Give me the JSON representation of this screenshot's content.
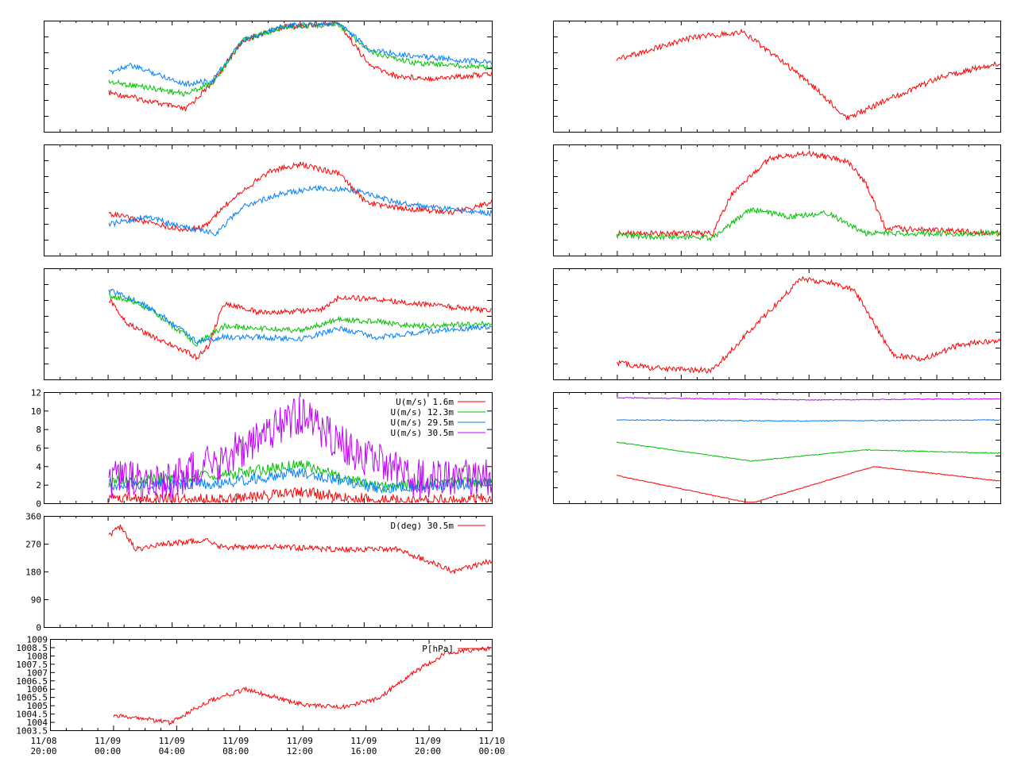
{
  "chart_data": [
    {
      "id": "p1",
      "type": "line",
      "series": [
        {
          "color": "#ff0000",
          "points": [
            [
              0,
              0.65
            ],
            [
              0.05,
              0.68
            ],
            [
              0.1,
              0.72
            ],
            [
              0.2,
              0.8
            ],
            [
              0.27,
              0.56
            ],
            [
              0.35,
              0.18
            ],
            [
              0.45,
              0.06
            ],
            [
              0.6,
              0.02
            ],
            [
              0.68,
              0.4
            ],
            [
              0.75,
              0.5
            ],
            [
              0.85,
              0.52
            ],
            [
              1,
              0.48
            ]
          ]
        },
        {
          "color": "#00c000",
          "points": [
            [
              0,
              0.55
            ],
            [
              0.1,
              0.6
            ],
            [
              0.2,
              0.66
            ],
            [
              0.27,
              0.56
            ],
            [
              0.35,
              0.18
            ],
            [
              0.45,
              0.06
            ],
            [
              0.6,
              0.03
            ],
            [
              0.68,
              0.28
            ],
            [
              0.8,
              0.38
            ],
            [
              1,
              0.42
            ]
          ]
        },
        {
          "color": "#0080ff",
          "points": [
            [
              0,
              0.47
            ],
            [
              0.05,
              0.4
            ],
            [
              0.1,
              0.45
            ],
            [
              0.2,
              0.57
            ],
            [
              0.27,
              0.54
            ],
            [
              0.35,
              0.18
            ],
            [
              0.45,
              0.05
            ],
            [
              0.6,
              0.02
            ],
            [
              0.68,
              0.26
            ],
            [
              0.8,
              0.32
            ],
            [
              1,
              0.38
            ]
          ]
        }
      ]
    },
    {
      "id": "p2",
      "type": "line",
      "series": [
        {
          "color": "#ff0000",
          "points": [
            [
              0,
              0.62
            ],
            [
              0.1,
              0.7
            ],
            [
              0.2,
              0.77
            ],
            [
              0.25,
              0.74
            ],
            [
              0.33,
              0.46
            ],
            [
              0.42,
              0.24
            ],
            [
              0.5,
              0.18
            ],
            [
              0.6,
              0.26
            ],
            [
              0.67,
              0.52
            ],
            [
              0.75,
              0.57
            ],
            [
              0.9,
              0.61
            ],
            [
              1,
              0.52
            ]
          ]
        },
        {
          "color": "#0080ff",
          "points": [
            [
              0,
              0.72
            ],
            [
              0.1,
              0.65
            ],
            [
              0.2,
              0.75
            ],
            [
              0.28,
              0.8
            ],
            [
              0.35,
              0.56
            ],
            [
              0.45,
              0.44
            ],
            [
              0.55,
              0.39
            ],
            [
              0.65,
              0.42
            ],
            [
              0.75,
              0.52
            ],
            [
              0.85,
              0.57
            ],
            [
              1,
              0.62
            ]
          ]
        }
      ]
    },
    {
      "id": "p3",
      "type": "line",
      "series": [
        {
          "color": "#ff0000",
          "points": [
            [
              0,
              0.28
            ],
            [
              0.05,
              0.5
            ],
            [
              0.12,
              0.62
            ],
            [
              0.23,
              0.8
            ],
            [
              0.26,
              0.7
            ],
            [
              0.3,
              0.32
            ],
            [
              0.4,
              0.4
            ],
            [
              0.55,
              0.38
            ],
            [
              0.6,
              0.26
            ],
            [
              0.7,
              0.28
            ],
            [
              0.8,
              0.32
            ],
            [
              1,
              0.38
            ]
          ]
        },
        {
          "color": "#00c000",
          "points": [
            [
              0,
              0.25
            ],
            [
              0.05,
              0.28
            ],
            [
              0.12,
              0.4
            ],
            [
              0.23,
              0.68
            ],
            [
              0.3,
              0.52
            ],
            [
              0.4,
              0.54
            ],
            [
              0.5,
              0.56
            ],
            [
              0.6,
              0.46
            ],
            [
              0.7,
              0.48
            ],
            [
              0.8,
              0.52
            ],
            [
              1,
              0.5
            ]
          ]
        },
        {
          "color": "#0080ff",
          "points": [
            [
              0,
              0.2
            ],
            [
              0.05,
              0.26
            ],
            [
              0.12,
              0.38
            ],
            [
              0.23,
              0.66
            ],
            [
              0.3,
              0.62
            ],
            [
              0.4,
              0.62
            ],
            [
              0.5,
              0.64
            ],
            [
              0.6,
              0.54
            ],
            [
              0.7,
              0.62
            ],
            [
              0.8,
              0.58
            ],
            [
              1,
              0.52
            ]
          ]
        }
      ]
    },
    {
      "id": "p4",
      "type": "line",
      "ylim": [
        0,
        12
      ],
      "yticks": [
        "12",
        "10",
        "8",
        "6",
        "4",
        "2",
        "0"
      ],
      "legend": [
        "U(m/s)  1.6m",
        "U(m/s) 12.3m",
        "U(m/s) 29.5m",
        "U(m/s) 30.5m"
      ],
      "series": [
        {
          "name": "U(m/s)  1.6m",
          "color": "#ff0000",
          "points": [
            [
              0,
              0.95
            ],
            [
              0.3,
              0.97
            ],
            [
              0.5,
              0.9
            ],
            [
              0.7,
              0.97
            ],
            [
              1,
              0.96
            ]
          ]
        },
        {
          "name": "U(m/s) 12.3m",
          "color": "#00c000",
          "points": [
            [
              0,
              0.8
            ],
            [
              0.3,
              0.75
            ],
            [
              0.5,
              0.65
            ],
            [
              0.7,
              0.85
            ],
            [
              1,
              0.8
            ]
          ]
        },
        {
          "name": "U(m/s) 29.5m",
          "color": "#0080ff",
          "points": [
            [
              0,
              0.83
            ],
            [
              0.3,
              0.82
            ],
            [
              0.5,
              0.72
            ],
            [
              0.7,
              0.86
            ],
            [
              1,
              0.82
            ]
          ]
        },
        {
          "name": "U(m/s) 30.5m",
          "color": "#c000ff",
          "points": [
            [
              0,
              0.78
            ],
            [
              0.15,
              0.8
            ],
            [
              0.3,
              0.6
            ],
            [
              0.5,
              0.2
            ],
            [
              0.65,
              0.55
            ],
            [
              0.8,
              0.78
            ],
            [
              1,
              0.75
            ]
          ]
        }
      ]
    },
    {
      "id": "p5",
      "type": "line",
      "ylim": [
        0,
        360
      ],
      "yticks": [
        "360",
        "270",
        "180",
        "90",
        "0"
      ],
      "legend": [
        "D(deg)  30.5m"
      ],
      "series": [
        {
          "name": "D(deg)  30.5m",
          "color": "#ff0000",
          "points": [
            [
              0,
              0.17
            ],
            [
              0.03,
              0.1
            ],
            [
              0.07,
              0.3
            ],
            [
              0.14,
              0.25
            ],
            [
              0.25,
              0.22
            ],
            [
              0.3,
              0.28
            ],
            [
              0.45,
              0.28
            ],
            [
              0.6,
              0.3
            ],
            [
              0.75,
              0.3
            ],
            [
              0.83,
              0.4
            ],
            [
              0.9,
              0.5
            ],
            [
              1,
              0.4
            ]
          ]
        }
      ]
    },
    {
      "id": "p6",
      "type": "line",
      "yticks": [
        "1009",
        "1008.5",
        "1008",
        "1007.5",
        "1007",
        "1006.5",
        "1006",
        "1005.5",
        "1005",
        "1004.5",
        "1004",
        "1003.5"
      ],
      "legend": [
        "P[hPa]"
      ],
      "series": [
        {
          "name": "P[hPa]",
          "color": "#ff0000",
          "points": [
            [
              0,
              0.85
            ],
            [
              0.05,
              0.85
            ],
            [
              0.15,
              0.92
            ],
            [
              0.25,
              0.68
            ],
            [
              0.35,
              0.55
            ],
            [
              0.5,
              0.72
            ],
            [
              0.6,
              0.75
            ],
            [
              0.7,
              0.65
            ],
            [
              0.8,
              0.35
            ],
            [
              0.88,
              0.15
            ],
            [
              1,
              0.1
            ]
          ]
        }
      ]
    },
    {
      "id": "p7",
      "type": "line",
      "series": [
        {
          "color": "#ff0000",
          "points": [
            [
              0,
              0.35
            ],
            [
              0.1,
              0.25
            ],
            [
              0.2,
              0.15
            ],
            [
              0.33,
              0.1
            ],
            [
              0.5,
              0.55
            ],
            [
              0.6,
              0.88
            ],
            [
              0.7,
              0.72
            ],
            [
              0.85,
              0.5
            ],
            [
              1,
              0.38
            ]
          ]
        }
      ]
    },
    {
      "id": "p8",
      "type": "line",
      "series": [
        {
          "color": "#ff0000",
          "points": [
            [
              0,
              0.8
            ],
            [
              0.25,
              0.8
            ],
            [
              0.3,
              0.45
            ],
            [
              0.4,
              0.12
            ],
            [
              0.5,
              0.08
            ],
            [
              0.6,
              0.15
            ],
            [
              0.65,
              0.35
            ],
            [
              0.7,
              0.75
            ],
            [
              1,
              0.8
            ]
          ]
        },
        {
          "color": "#00c000",
          "points": [
            [
              0,
              0.82
            ],
            [
              0.25,
              0.84
            ],
            [
              0.35,
              0.58
            ],
            [
              0.45,
              0.65
            ],
            [
              0.55,
              0.62
            ],
            [
              0.65,
              0.8
            ],
            [
              1,
              0.8
            ]
          ]
        }
      ]
    },
    {
      "id": "p9",
      "type": "line",
      "series": [
        {
          "color": "#ff0000",
          "points": [
            [
              0,
              0.85
            ],
            [
              0.1,
              0.9
            ],
            [
              0.25,
              0.92
            ],
            [
              0.35,
              0.55
            ],
            [
              0.48,
              0.1
            ],
            [
              0.55,
              0.12
            ],
            [
              0.62,
              0.2
            ],
            [
              0.72,
              0.78
            ],
            [
              0.8,
              0.82
            ],
            [
              0.9,
              0.68
            ],
            [
              1,
              0.65
            ]
          ]
        }
      ]
    },
    {
      "id": "p10",
      "type": "line",
      "series": [
        {
          "color": "#c000ff",
          "points": [
            [
              0,
              0.05
            ],
            [
              0.5,
              0.07
            ],
            [
              1,
              0.06
            ]
          ]
        },
        {
          "color": "#0080ff",
          "points": [
            [
              0,
              0.25
            ],
            [
              0.5,
              0.26
            ],
            [
              1,
              0.25
            ]
          ]
        },
        {
          "color": "#00c000",
          "points": [
            [
              0,
              0.45
            ],
            [
              0.35,
              0.62
            ],
            [
              0.65,
              0.52
            ],
            [
              1,
              0.55
            ]
          ]
        },
        {
          "color": "#ff0000",
          "points": [
            [
              0,
              0.75
            ],
            [
              0.35,
              1.0
            ],
            [
              0.67,
              0.67
            ],
            [
              1,
              0.8
            ]
          ]
        }
      ]
    }
  ],
  "x_tick_labels": [
    [
      "11/08",
      "20:00"
    ],
    [
      "11/09",
      "00:00"
    ],
    [
      "11/09",
      "04:00"
    ],
    [
      "11/09",
      "08:00"
    ],
    [
      "11/09",
      "12:00"
    ],
    [
      "11/09",
      "16:00"
    ],
    [
      "11/09",
      "20:00"
    ],
    [
      "11/10",
      "00:00"
    ]
  ]
}
